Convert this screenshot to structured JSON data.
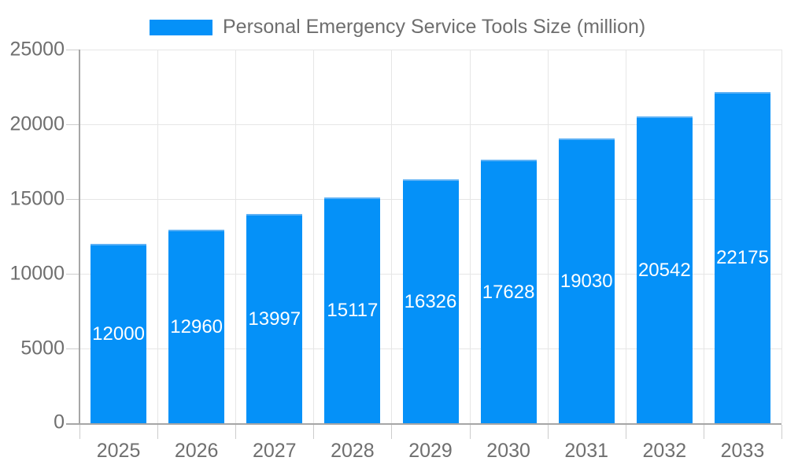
{
  "chart_data": {
    "type": "bar",
    "title": "Personal Emergency Service Tools Size (million)",
    "categories": [
      "2025",
      "2026",
      "2027",
      "2028",
      "2029",
      "2030",
      "2031",
      "2032",
      "2033"
    ],
    "values": [
      12000,
      12960,
      13997,
      15117,
      16326,
      17628,
      19030,
      20542,
      22175
    ],
    "xlabel": "",
    "ylabel": "",
    "ylim": [
      0,
      25000
    ],
    "yticks": [
      0,
      5000,
      10000,
      15000,
      20000,
      25000
    ],
    "grid": "on",
    "legend_position": "top",
    "colors": {
      "bar": "#0591f8",
      "bar_border_top": "#5db1f5",
      "bar_label_text": "#ffffff",
      "axis_line": "#a6a6a6",
      "gridline": "#e6e6e6",
      "tick": "#cccccc",
      "tick_text": "#6f6f6f",
      "legend_text": "#6e6e6e"
    }
  }
}
